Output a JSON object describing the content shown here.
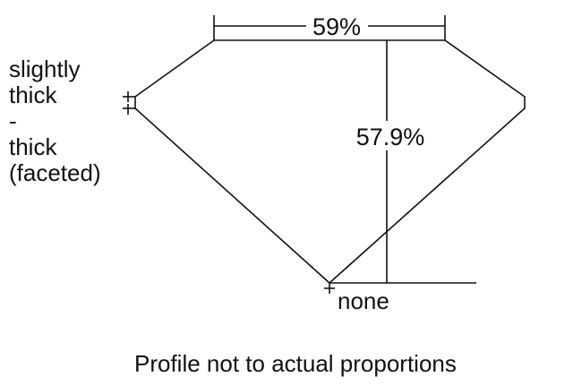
{
  "diagram": {
    "table_percent": "59%",
    "depth_percent": "57.9%",
    "girdle_label": [
      "slightly",
      "thick",
      "-",
      "thick",
      "(faceted)"
    ],
    "culet_label": "none",
    "caption": "Profile not to actual proportions",
    "line_color": "#111111"
  }
}
